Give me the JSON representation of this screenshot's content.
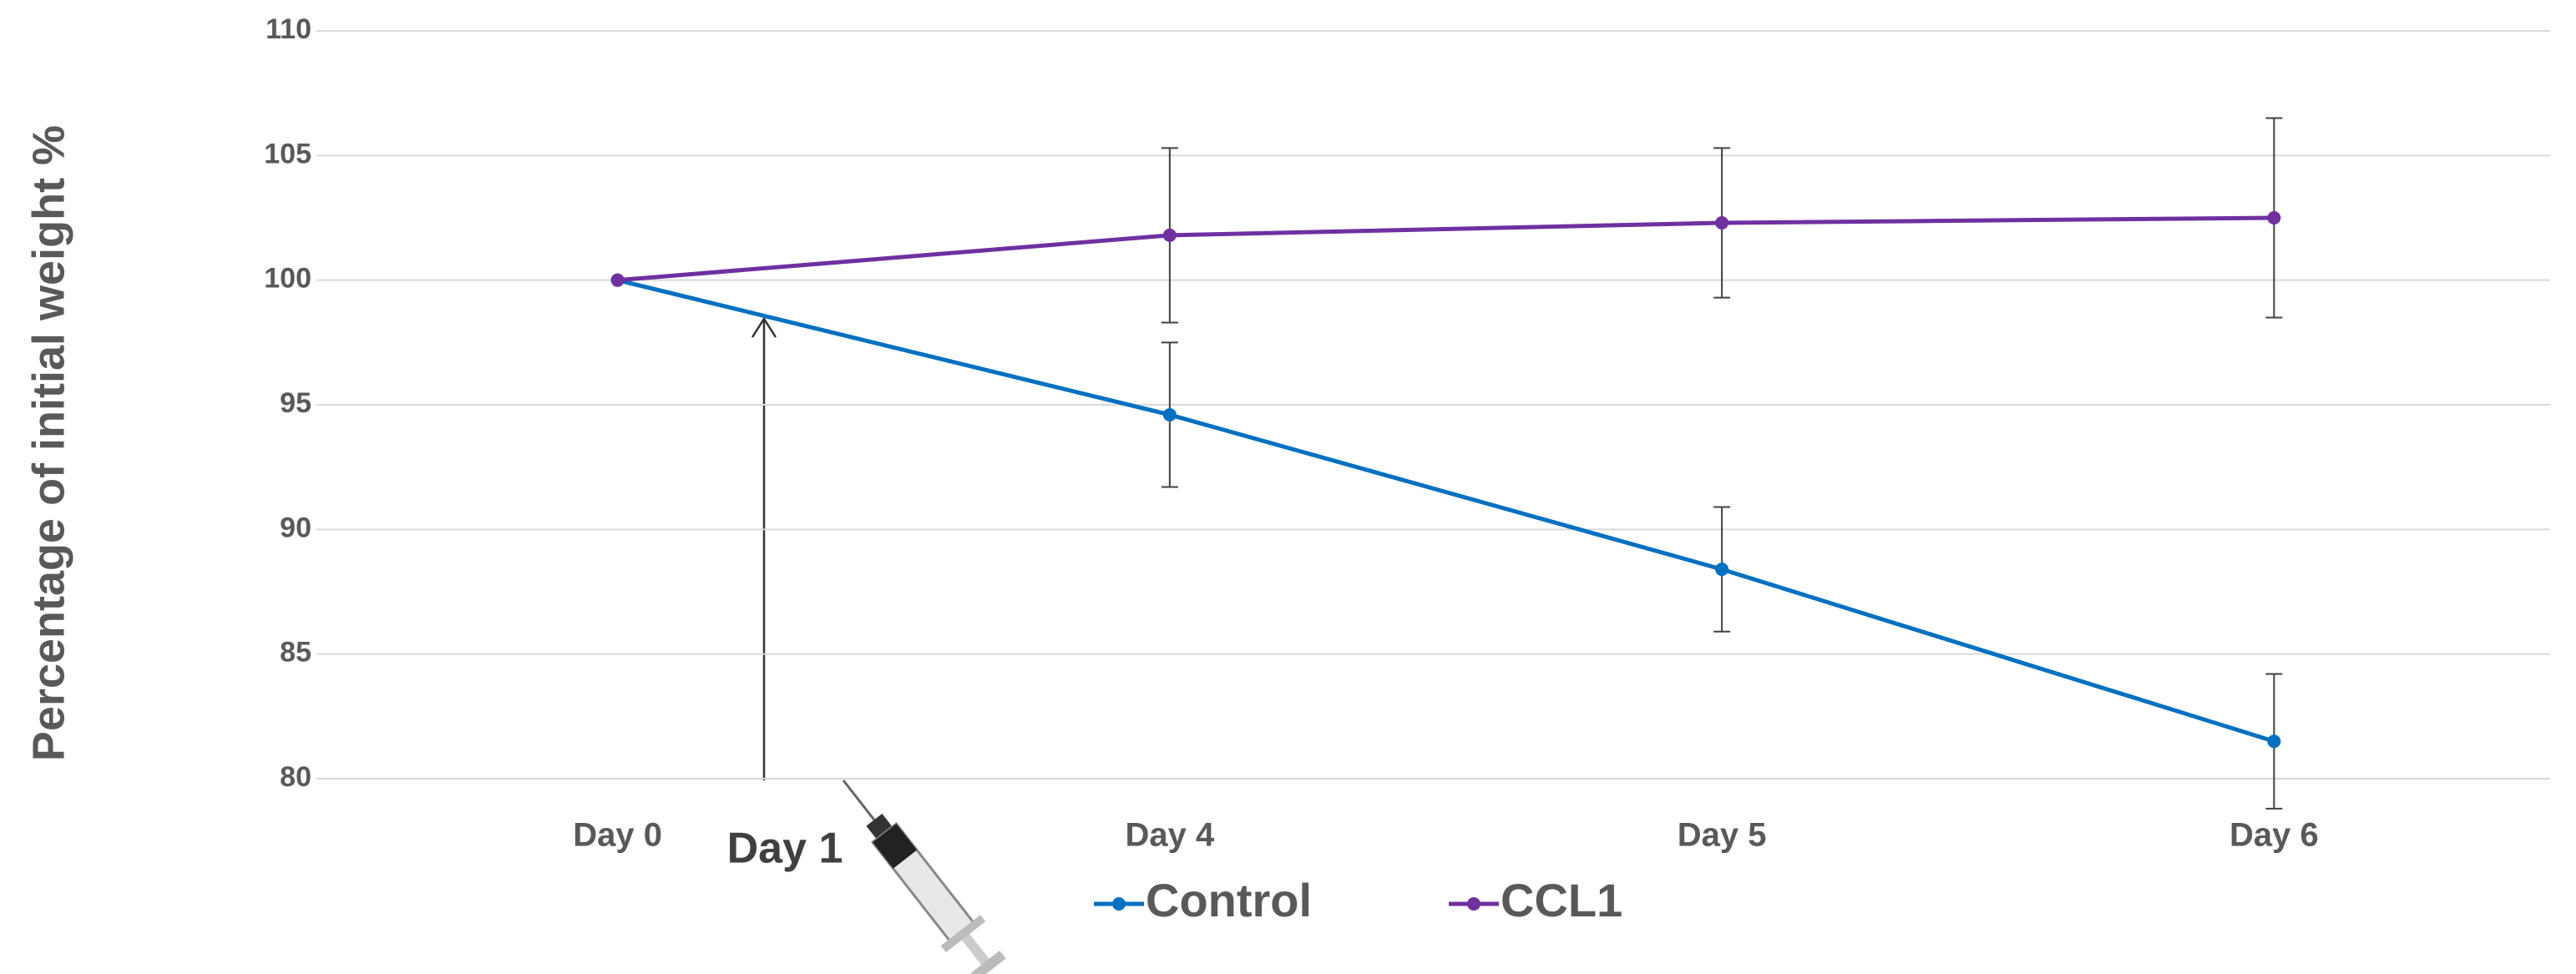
{
  "chart_data": {
    "type": "line",
    "y_label": "Percentage of initial weight %",
    "annotation": "Day 1",
    "categories": [
      "Day 0",
      "Day 4",
      "Day 5",
      "Day 6"
    ],
    "series": [
      {
        "name": "Control",
        "color": "#0070c0",
        "values": [
          100,
          94.6,
          88.4,
          81.5
        ],
        "errors": [
          null,
          2.9,
          2.5,
          2.7
        ]
      },
      {
        "name": "CCL1",
        "color": "#7030a0",
        "values": [
          100,
          101.8,
          102.3,
          102.5
        ],
        "errors": [
          null,
          3.5,
          3.0,
          4.0
        ]
      }
    ],
    "ylim": [
      80,
      110
    ],
    "yticks": [
      80,
      85,
      90,
      95,
      100,
      105,
      110
    ],
    "grid": true,
    "legend": "bottom"
  }
}
